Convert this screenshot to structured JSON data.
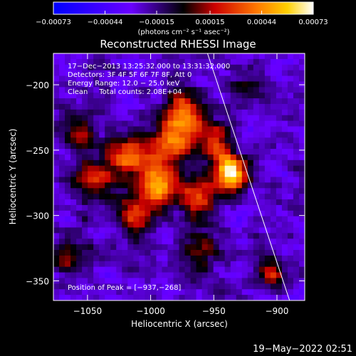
{
  "chart_data": {
    "type": "heatmap",
    "title": "Reconstructed RHESSI Image",
    "xlabel": "Heliocentric X (arcsec)",
    "ylabel": "Heliocentric Y (arcsec)",
    "xlim": [
      -1077,
      -878
    ],
    "ylim": [
      -365,
      -176
    ],
    "xticks": [
      -1050,
      -1000,
      -950,
      -900
    ],
    "xtick_labels": [
      "−1050",
      "−1000",
      "−950",
      "−900"
    ],
    "yticks": [
      -200,
      -250,
      -300,
      -350
    ],
    "ytick_labels": [
      "−200",
      "−250",
      "−300",
      "−350"
    ],
    "colorbar": {
      "min": -0.00073,
      "max": 0.00073,
      "ticks": [
        -0.00073,
        -0.00044,
        -0.00015,
        0.00015,
        0.00044,
        0.00073
      ],
      "tick_labels": [
        "−0.00073",
        "−0.00044",
        "−0.00015",
        "0.00015",
        "0.00044",
        "0.00073"
      ],
      "unit_label": "(photons cm⁻² s⁻¹ asec⁻²)"
    },
    "info_lines": [
      "17−Dec−2013 13:25:32.000 to 13:31:32.000",
      "Detectors: 3F 4F 5F 6F 7F 8F, Att 0",
      "Energy Range: 12.0 − 25.0 keV",
      "Clean     Total counts: 2.08E+04"
    ],
    "peak_label": "Position of Peak = [−937,−268]",
    "peak": {
      "x": -937,
      "y": -268,
      "value": 0.00073
    },
    "limb_line": [
      [
        -955,
        -176
      ],
      [
        -890,
        -365
      ]
    ],
    "emission_blobs": [
      {
        "x": -937,
        "y": -268,
        "amp": 1.0,
        "sigma": 9
      },
      {
        "x": -973,
        "y": -223,
        "amp": 0.72,
        "sigma": 11
      },
      {
        "x": -995,
        "y": -278,
        "amp": 0.8,
        "sigma": 10
      },
      {
        "x": -1018,
        "y": -255,
        "amp": 0.58,
        "sigma": 11
      },
      {
        "x": -985,
        "y": -248,
        "amp": 0.6,
        "sigma": 13
      },
      {
        "x": -1045,
        "y": -272,
        "amp": 0.48,
        "sigma": 12
      },
      {
        "x": -1012,
        "y": -300,
        "amp": 0.5,
        "sigma": 10
      },
      {
        "x": -963,
        "y": -286,
        "amp": 0.52,
        "sigma": 10
      },
      {
        "x": -948,
        "y": -245,
        "amp": 0.55,
        "sigma": 9
      },
      {
        "x": -1055,
        "y": -238,
        "amp": 0.35,
        "sigma": 10
      },
      {
        "x": -960,
        "y": -325,
        "amp": 0.35,
        "sigma": 12
      },
      {
        "x": -905,
        "y": -345,
        "amp": 0.42,
        "sigma": 8
      },
      {
        "x": -1062,
        "y": -330,
        "amp": 0.3,
        "sigma": 10
      },
      {
        "x": -925,
        "y": -205,
        "amp": 0.28,
        "sigma": 9
      }
    ]
  },
  "timestamp": "19−May−2022 02:51"
}
